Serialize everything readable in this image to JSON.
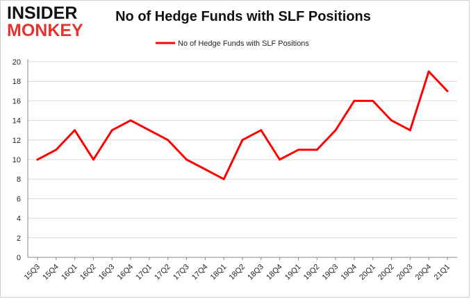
{
  "logo": {
    "line1": "INSIDER",
    "line2": "MONKEY"
  },
  "chart_data": {
    "type": "line",
    "title": "No of Hedge Funds with SLF Positions",
    "xlabel": "",
    "ylabel": "",
    "categories": [
      "15Q3",
      "15Q4",
      "16Q1",
      "16Q2",
      "16Q3",
      "16Q4",
      "17Q1",
      "17Q2",
      "17Q3",
      "17Q4",
      "18Q1",
      "18Q2",
      "18Q3",
      "18Q4",
      "19Q1",
      "19Q2",
      "19Q3",
      "19Q4",
      "20Q1",
      "20Q2",
      "20Q3",
      "20Q4",
      "21Q1"
    ],
    "series": [
      {
        "name": "No of Hedge Funds with SLF Positions",
        "color": "#ff0000",
        "values": [
          10,
          11,
          13,
          10,
          13,
          14,
          13,
          12,
          10,
          9,
          8,
          12,
          13,
          10,
          11,
          11,
          13,
          16,
          16,
          14,
          13,
          19,
          17
        ]
      }
    ],
    "ylim": [
      0,
      20
    ],
    "yticks": [
      0,
      2,
      4,
      6,
      8,
      10,
      12,
      14,
      16,
      18,
      20
    ],
    "grid": true,
    "legend": "top-center"
  }
}
